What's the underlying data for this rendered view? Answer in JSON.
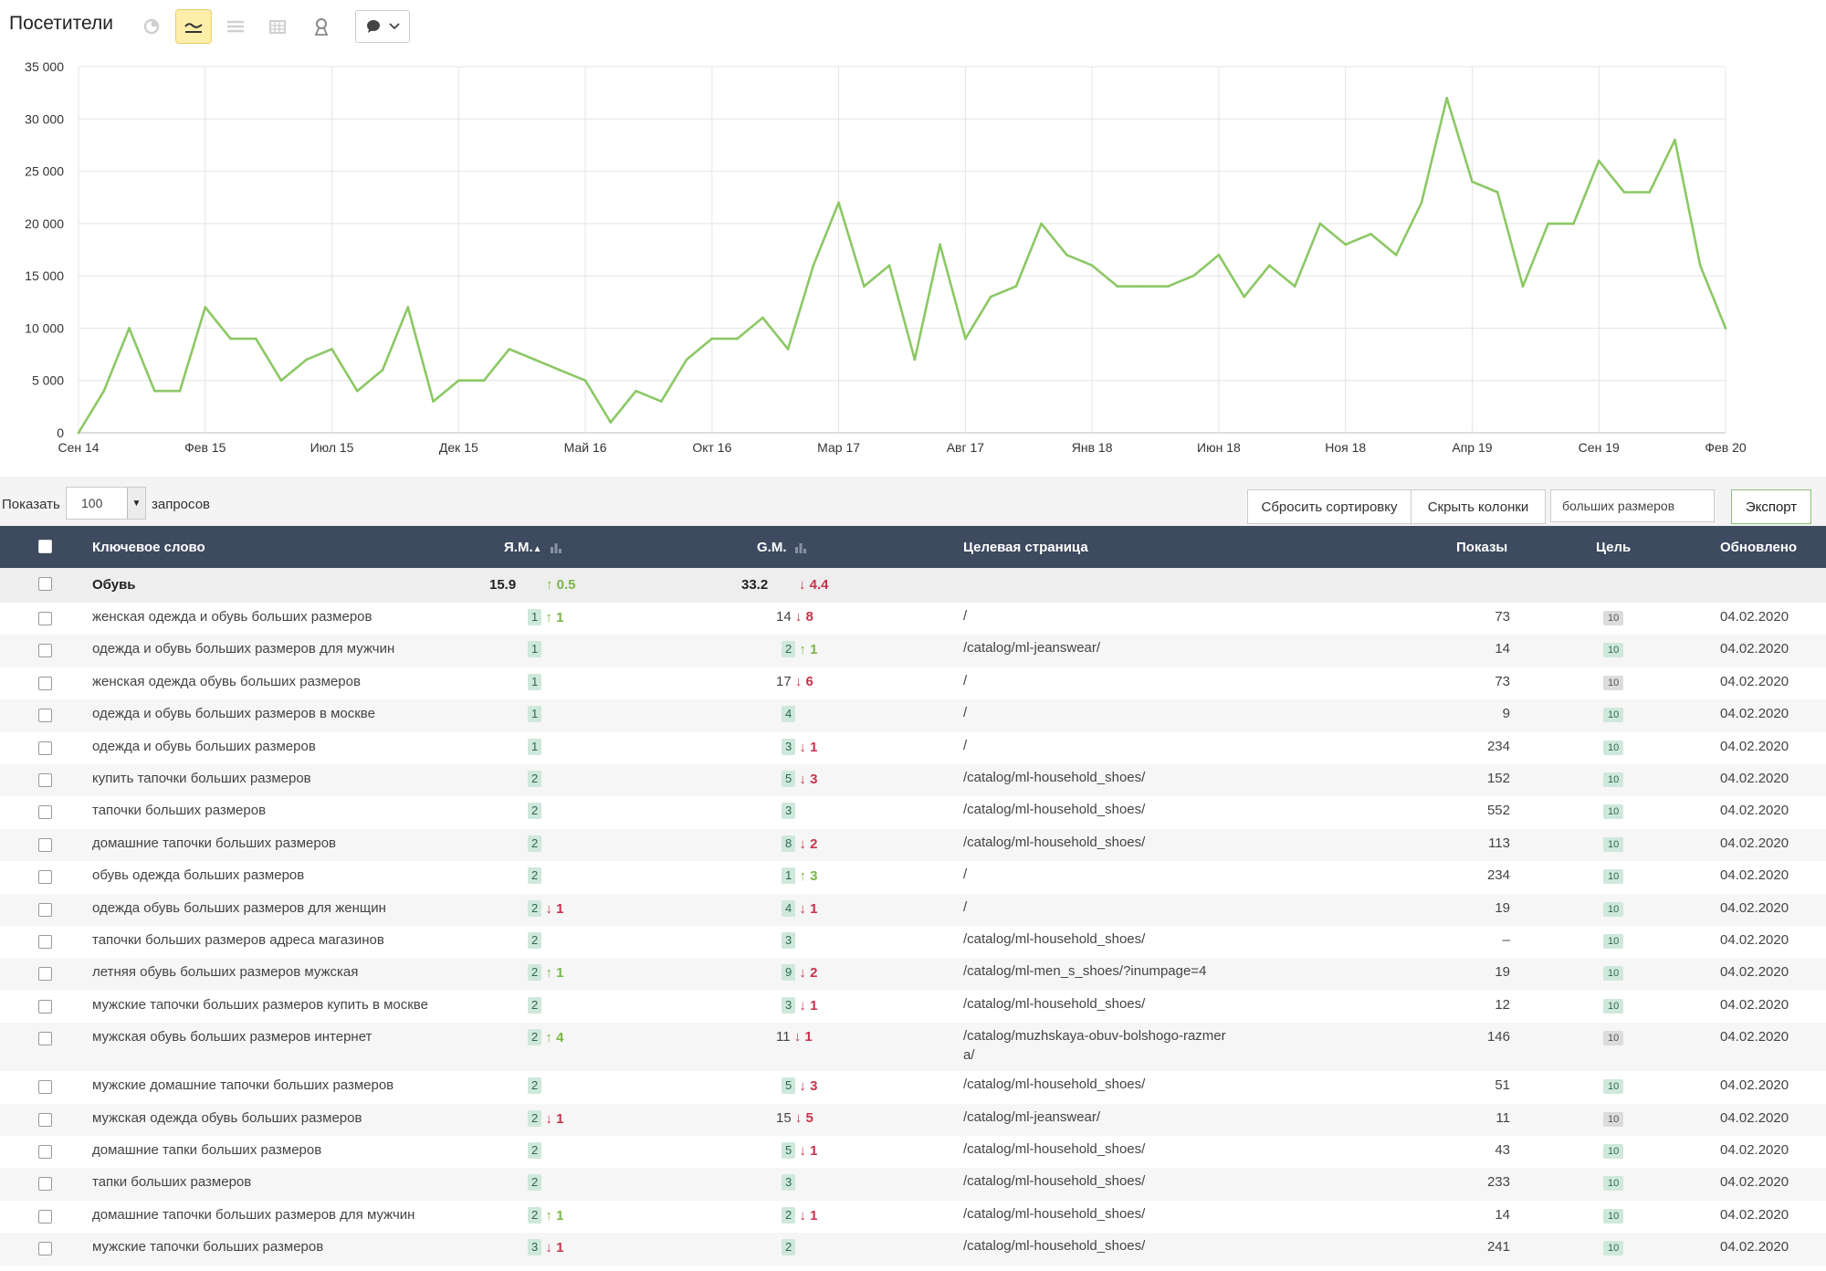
{
  "header": {
    "title": "Посетители",
    "toolbar": [
      "pie-chart-icon",
      "line-chart-icon",
      "area-chart-icon",
      "bar-chart-icon",
      "map-pin-icon",
      "comment-dropdown-icon"
    ]
  },
  "chart_data": {
    "type": "line",
    "x": [
      "Сен 14",
      "Окт 14",
      "Ноя 14",
      "Дек 14",
      "Янв 15",
      "Фев 15",
      "Мар 15",
      "Апр 15",
      "Май 15",
      "Июн 15",
      "Июл 15",
      "Авг 15",
      "Сен 15",
      "Окт 15",
      "Ноя 15",
      "Дек 15",
      "Янв 16",
      "Фев 16",
      "Мар 16",
      "Апр 16",
      "Май 16",
      "Июн 16",
      "Июл 16",
      "Авг 16",
      "Сен 16",
      "Окт 16",
      "Ноя 16",
      "Дек 16",
      "Янв 17",
      "Фев 17",
      "Мар 17",
      "Апр 17",
      "Май 17",
      "Июн 17",
      "Июл 17",
      "Авг 17",
      "Сен 17",
      "Окт 17",
      "Ноя 17",
      "Дек 17",
      "Янв 18",
      "Фев 18",
      "Мар 18",
      "Апр 18",
      "Май 18",
      "Июн 18",
      "Июл 18",
      "Авг 18",
      "Сен 18",
      "Окт 18",
      "Ноя 18",
      "Дек 18",
      "Янв 19",
      "Фев 19",
      "Мар 19",
      "Апр 19",
      "Май 19",
      "Июн 19",
      "Июл 19",
      "Авг 19",
      "Сен 19",
      "Окт 19",
      "Ноя 19",
      "Дек 19",
      "Янв 20",
      "Фев 20"
    ],
    "series": [
      {
        "values": [
          0,
          4000,
          10000,
          4000,
          4000,
          12000,
          9000,
          9000,
          5000,
          7000,
          8000,
          4000,
          6000,
          12000,
          3000,
          5000,
          5000,
          8000,
          7000,
          6000,
          5000,
          1000,
          4000,
          3000,
          7000,
          9000,
          9000,
          11000,
          8000,
          16000,
          22000,
          14000,
          16000,
          7000,
          18000,
          9000,
          13000,
          14000,
          20000,
          17000,
          16000,
          14000,
          14000,
          14000,
          15000,
          17000,
          13000,
          16000,
          14000,
          20000,
          18000,
          19000,
          17000,
          22000,
          32000,
          24000,
          23000,
          14000,
          20000,
          20000,
          26000,
          23000,
          23000,
          28000,
          16000,
          10000
        ]
      }
    ],
    "title": "",
    "xlabel": "",
    "ylabel": "",
    "ylim": [
      0,
      35000
    ],
    "y_ticks": [
      "0",
      "5 000",
      "10 000",
      "15 000",
      "20 000",
      "25 000",
      "30 000",
      "35 000"
    ],
    "x_tick_labels": [
      "Сен 14",
      "Фев 15",
      "Июл 15",
      "Дек 15",
      "Май 16",
      "Окт 16",
      "Мар 17",
      "Авг 17",
      "Янв 18",
      "Июн 18",
      "Ноя 18",
      "Апр 19",
      "Сен 19",
      "Фев 20"
    ],
    "line_color": "#8cc865",
    "grid": true
  },
  "controls": {
    "show_label": "Показать",
    "rows_value": "100",
    "rows_suffix": "запросов",
    "reset_sort": "Сбросить сортировку",
    "hide_columns": "Скрыть колонки",
    "filter_value": "больших размеров",
    "export": "Экспорт"
  },
  "table": {
    "headers": {
      "keyword": "Ключевое слово",
      "ym": "Я.М.",
      "gm": "G.M.",
      "target": "Целевая страница",
      "shows": "Показы",
      "goal": "Цель",
      "updated": "Обновлено"
    },
    "group": {
      "name": "Обувь",
      "ym": "15.9",
      "ym_delta": "0.5",
      "ym_dir": "up",
      "gm": "33.2",
      "gm_delta": "4.4",
      "gm_dir": "down"
    },
    "rows": [
      {
        "kw": "женская одежда и обувь больших размеров",
        "ym": "1",
        "ym_dir": "up",
        "ym_d": "1",
        "gm": "14",
        "gm_badge": false,
        "gm_dir": "down",
        "gm_d": "8",
        "url": "/",
        "shows": "73",
        "goal": "10",
        "goal_gray": true,
        "date": "04.02.2020"
      },
      {
        "kw": "одежда и обувь больших размеров для мужчин",
        "ym": "1",
        "ym_dir": "",
        "ym_d": "",
        "gm": "2",
        "gm_badge": true,
        "gm_dir": "up",
        "gm_d": "1",
        "url": "/catalog/ml-jeanswear/",
        "shows": "14",
        "goal": "10",
        "goal_gray": false,
        "date": "04.02.2020"
      },
      {
        "kw": "женская одежда обувь больших размеров",
        "ym": "1",
        "ym_dir": "",
        "ym_d": "",
        "gm": "17",
        "gm_badge": false,
        "gm_dir": "down",
        "gm_d": "6",
        "url": "/",
        "shows": "73",
        "goal": "10",
        "goal_gray": true,
        "date": "04.02.2020"
      },
      {
        "kw": "одежда и обувь больших размеров в москве",
        "ym": "1",
        "ym_dir": "",
        "ym_d": "",
        "gm": "4",
        "gm_badge": true,
        "gm_dir": "",
        "gm_d": "",
        "url": "/",
        "shows": "9",
        "goal": "10",
        "goal_gray": false,
        "date": "04.02.2020"
      },
      {
        "kw": "одежда и обувь больших размеров",
        "ym": "1",
        "ym_dir": "",
        "ym_d": "",
        "gm": "3",
        "gm_badge": true,
        "gm_dir": "down",
        "gm_d": "1",
        "url": "/",
        "shows": "234",
        "goal": "10",
        "goal_gray": false,
        "date": "04.02.2020"
      },
      {
        "kw": "купить тапочки больших размеров",
        "ym": "2",
        "ym_dir": "",
        "ym_d": "",
        "gm": "5",
        "gm_badge": true,
        "gm_dir": "down",
        "gm_d": "3",
        "url": "/catalog/ml-household_shoes/",
        "shows": "152",
        "goal": "10",
        "goal_gray": false,
        "date": "04.02.2020"
      },
      {
        "kw": "тапочки больших размеров",
        "ym": "2",
        "ym_dir": "",
        "ym_d": "",
        "gm": "3",
        "gm_badge": true,
        "gm_dir": "",
        "gm_d": "",
        "url": "/catalog/ml-household_shoes/",
        "shows": "552",
        "goal": "10",
        "goal_gray": false,
        "date": "04.02.2020"
      },
      {
        "kw": "домашние тапочки больших размеров",
        "ym": "2",
        "ym_dir": "",
        "ym_d": "",
        "gm": "8",
        "gm_badge": true,
        "gm_dir": "down",
        "gm_d": "2",
        "url": "/catalog/ml-household_shoes/",
        "shows": "113",
        "goal": "10",
        "goal_gray": false,
        "date": "04.02.2020"
      },
      {
        "kw": "обувь одежда больших размеров",
        "ym": "2",
        "ym_dir": "",
        "ym_d": "",
        "gm": "1",
        "gm_badge": true,
        "gm_dir": "up",
        "gm_d": "3",
        "url": "/",
        "shows": "234",
        "goal": "10",
        "goal_gray": false,
        "date": "04.02.2020"
      },
      {
        "kw": "одежда обувь больших размеров для женщин",
        "ym": "2",
        "ym_dir": "down",
        "ym_d": "1",
        "gm": "4",
        "gm_badge": true,
        "gm_dir": "down",
        "gm_d": "1",
        "url": "/",
        "shows": "19",
        "goal": "10",
        "goal_gray": false,
        "date": "04.02.2020"
      },
      {
        "kw": "тапочки больших размеров адреса магазинов",
        "ym": "2",
        "ym_dir": "",
        "ym_d": "",
        "gm": "3",
        "gm_badge": true,
        "gm_dir": "",
        "gm_d": "",
        "url": "/catalog/ml-household_shoes/",
        "shows": "–",
        "goal": "10",
        "goal_gray": false,
        "date": "04.02.2020"
      },
      {
        "kw": "летняя обувь больших размеров мужская",
        "ym": "2",
        "ym_dir": "up",
        "ym_d": "1",
        "gm": "9",
        "gm_badge": true,
        "gm_dir": "down",
        "gm_d": "2",
        "url": "/catalog/ml-men_s_shoes/?inumpage=4",
        "shows": "19",
        "goal": "10",
        "goal_gray": false,
        "date": "04.02.2020"
      },
      {
        "kw": "мужские тапочки больших размеров купить в москве",
        "ym": "2",
        "ym_dir": "",
        "ym_d": "",
        "gm": "3",
        "gm_badge": true,
        "gm_dir": "down",
        "gm_d": "1",
        "url": "/catalog/ml-household_shoes/",
        "shows": "12",
        "goal": "10",
        "goal_gray": false,
        "date": "04.02.2020"
      },
      {
        "kw": "мужская обувь больших размеров интернет",
        "ym": "2",
        "ym_dir": "up",
        "ym_d": "4",
        "gm": "11",
        "gm_badge": false,
        "gm_dir": "down",
        "gm_d": "1",
        "url": "/catalog/muzhskaya-obuv-bolshogo-razmer",
        "url2": "a/",
        "shows": "146",
        "goal": "10",
        "goal_gray": true,
        "date": "04.02.2020"
      },
      {
        "kw": "мужские домашние тапочки больших размеров",
        "ym": "2",
        "ym_dir": "",
        "ym_d": "",
        "gm": "5",
        "gm_badge": true,
        "gm_dir": "down",
        "gm_d": "3",
        "url": "/catalog/ml-household_shoes/",
        "shows": "51",
        "goal": "10",
        "goal_gray": false,
        "date": "04.02.2020"
      },
      {
        "kw": "мужская одежда обувь больших размеров",
        "ym": "2",
        "ym_dir": "down",
        "ym_d": "1",
        "gm": "15",
        "gm_badge": false,
        "gm_dir": "down",
        "gm_d": "5",
        "url": "/catalog/ml-jeanswear/",
        "shows": "11",
        "goal": "10",
        "goal_gray": true,
        "date": "04.02.2020"
      },
      {
        "kw": "домашние тапки больших размеров",
        "ym": "2",
        "ym_dir": "",
        "ym_d": "",
        "gm": "5",
        "gm_badge": true,
        "gm_dir": "down",
        "gm_d": "1",
        "url": "/catalog/ml-household_shoes/",
        "shows": "43",
        "goal": "10",
        "goal_gray": false,
        "date": "04.02.2020"
      },
      {
        "kw": "тапки больших размеров",
        "ym": "2",
        "ym_dir": "",
        "ym_d": "",
        "gm": "3",
        "gm_badge": true,
        "gm_dir": "",
        "gm_d": "",
        "url": "/catalog/ml-household_shoes/",
        "shows": "233",
        "goal": "10",
        "goal_gray": false,
        "date": "04.02.2020"
      },
      {
        "kw": "домашние тапочки больших размеров для мужчин",
        "ym": "2",
        "ym_dir": "up",
        "ym_d": "1",
        "gm": "2",
        "gm_badge": true,
        "gm_dir": "down",
        "gm_d": "1",
        "url": "/catalog/ml-household_shoes/",
        "shows": "14",
        "goal": "10",
        "goal_gray": false,
        "date": "04.02.2020"
      },
      {
        "kw": "мужские тапочки больших размеров",
        "ym": "3",
        "ym_dir": "down",
        "ym_d": "1",
        "gm": "2",
        "gm_badge": true,
        "gm_dir": "",
        "gm_d": "",
        "url": "/catalog/ml-household_shoes/",
        "shows": "241",
        "goal": "10",
        "goal_gray": false,
        "date": "04.02.2020"
      }
    ]
  }
}
